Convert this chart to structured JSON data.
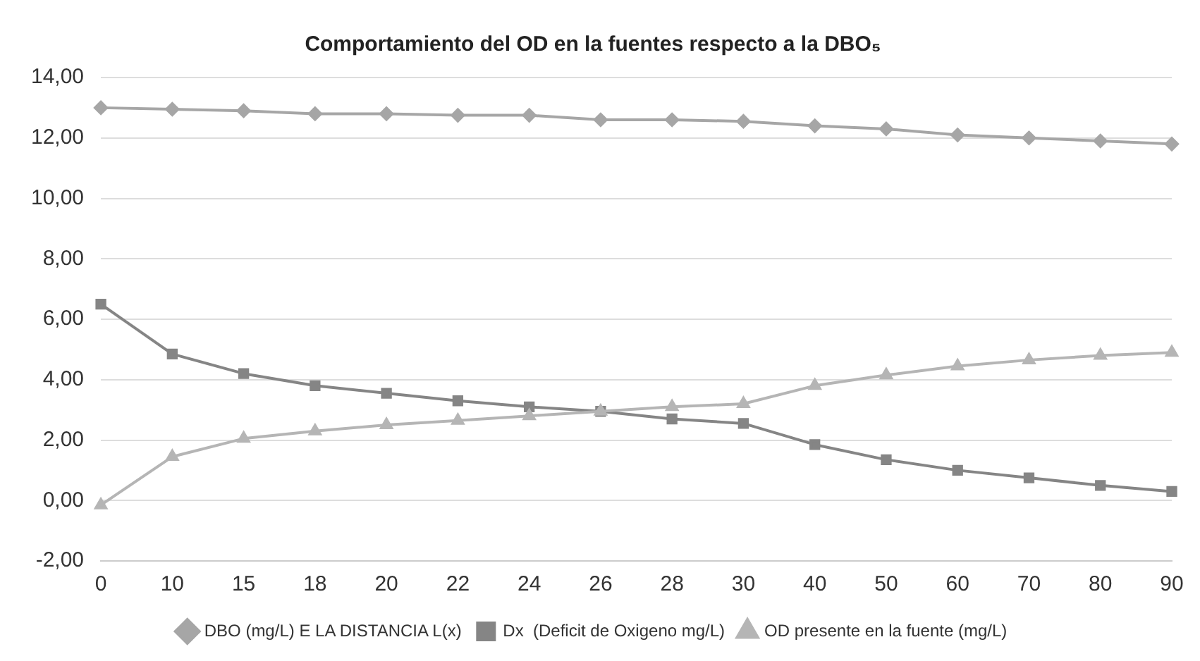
{
  "chart_data": {
    "type": "line",
    "title": "Comportamiento del OD en la fuentes respecto a la DBO₅",
    "categories": [
      "0",
      "10",
      "15",
      "18",
      "20",
      "22",
      "24",
      "26",
      "28",
      "30",
      "40",
      "50",
      "60",
      "70",
      "80",
      "90"
    ],
    "series": [
      {
        "name": "DBO (mg/L) E LA DISTANCIA L(x)",
        "color": "#a6a6a6",
        "marker": "diamond",
        "values": [
          13.0,
          12.95,
          12.9,
          12.8,
          12.8,
          12.75,
          12.75,
          12.6,
          12.6,
          12.55,
          12.4,
          12.3,
          12.1,
          12.0,
          11.9,
          11.8
        ]
      },
      {
        "name": "Dx  (Deficit de Oxigeno mg/L)",
        "color": "#858585",
        "marker": "square",
        "values": [
          6.5,
          4.85,
          4.2,
          3.8,
          3.55,
          3.3,
          3.1,
          2.95,
          2.7,
          2.55,
          1.85,
          1.35,
          1.0,
          0.75,
          0.5,
          0.3
        ]
      },
      {
        "name": "OD presente en la fuente (mg/L)",
        "color": "#b5b5b5",
        "marker": "triangle",
        "values": [
          -0.15,
          1.45,
          2.05,
          2.3,
          2.5,
          2.65,
          2.8,
          2.95,
          3.1,
          3.2,
          3.8,
          4.15,
          4.45,
          4.65,
          4.8,
          4.9
        ]
      }
    ],
    "ylim": [
      -2,
      14
    ],
    "yticks": [
      {
        "value": -2,
        "label": "-2,00"
      },
      {
        "value": 0,
        "label": "0,00"
      },
      {
        "value": 2,
        "label": "2,00"
      },
      {
        "value": 4,
        "label": "4,00"
      },
      {
        "value": 6,
        "label": "6,00"
      },
      {
        "value": 8,
        "label": "8,00"
      },
      {
        "value": 10,
        "label": "10,00"
      },
      {
        "value": 12,
        "label": "12,00"
      },
      {
        "value": 14,
        "label": "14,00"
      }
    ],
    "grid": "y",
    "legend": "bottom"
  }
}
